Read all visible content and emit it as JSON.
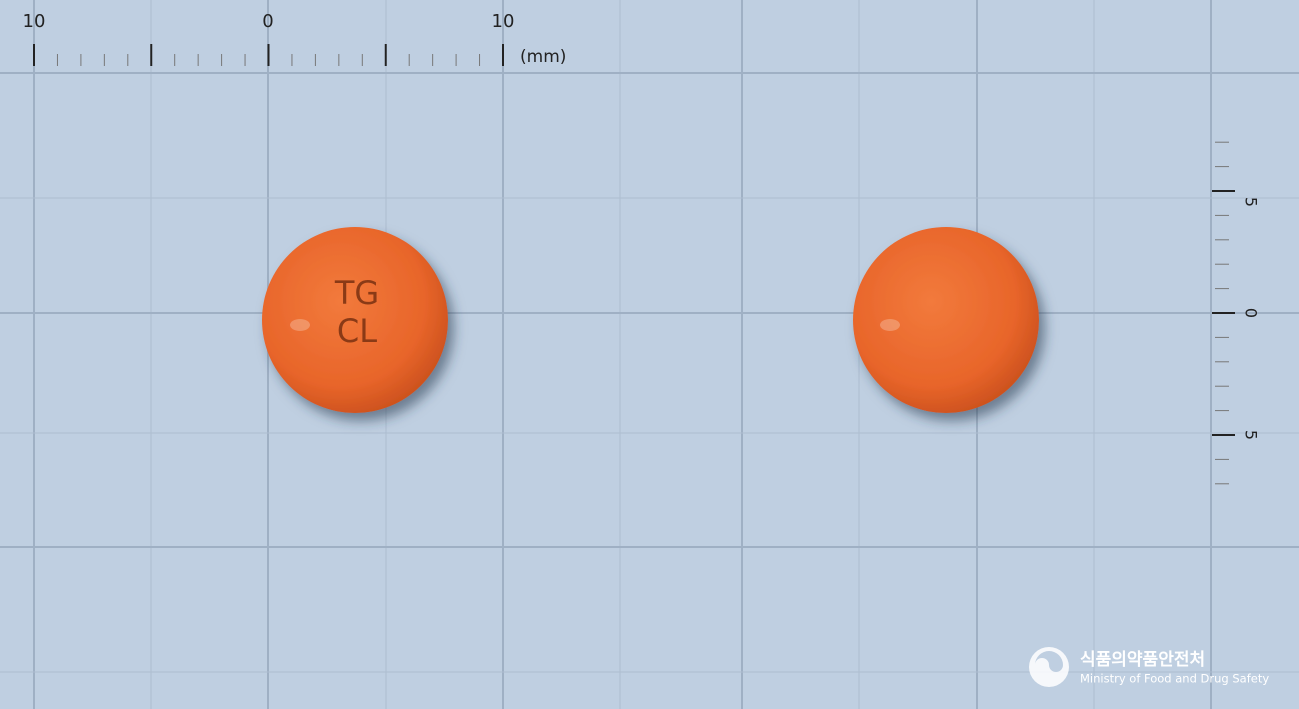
{
  "ruler_top": {
    "labels": [
      "10",
      "0",
      "10"
    ],
    "unit": "(mm)"
  },
  "ruler_right": {
    "labels": [
      "5",
      "0",
      "5"
    ]
  },
  "pills": [
    {
      "imprint": [
        "TG",
        "CL"
      ]
    },
    {
      "imprint": []
    }
  ],
  "logo": {
    "name": "식품의약품안전처",
    "english": "Ministry of Food and Drug Safety"
  }
}
